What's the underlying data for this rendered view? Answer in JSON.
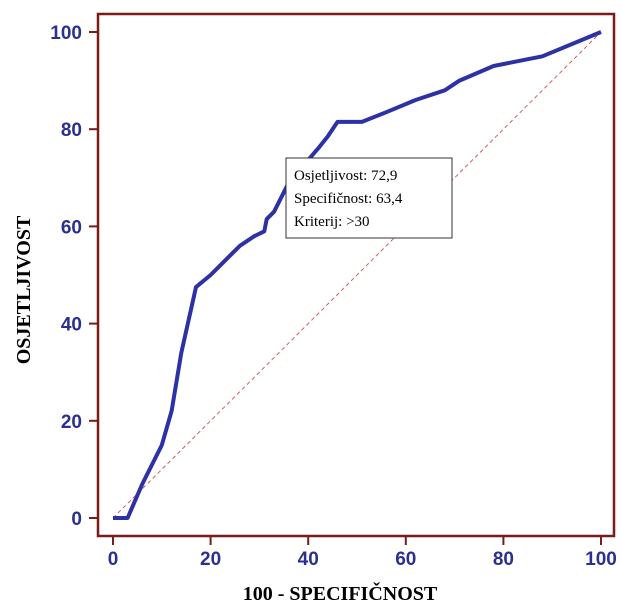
{
  "chart_data": {
    "type": "line",
    "title": "",
    "xlabel": "100 - SPECIFIČNOST",
    "ylabel": "OSJETLJIVOST",
    "xlim": [
      0,
      100
    ],
    "ylim": [
      0,
      100
    ],
    "xticks": [
      0,
      20,
      40,
      60,
      80,
      100
    ],
    "yticks": [
      0,
      20,
      40,
      60,
      80,
      100
    ],
    "grid": false,
    "series": [
      {
        "name": "",
        "color": "#2d31a6",
        "x": [
          0,
          3,
          6,
          10,
          12,
          14,
          17,
          20,
          23,
          26,
          29,
          31,
          31.5,
          33,
          36,
          39,
          42,
          44,
          46,
          51,
          56,
          62,
          68,
          71,
          78,
          88,
          100
        ],
        "y": [
          0,
          0,
          7,
          15,
          22,
          34,
          47.5,
          50,
          53,
          56,
          58,
          59,
          61.5,
          63,
          69,
          72.5,
          76,
          78.5,
          81.5,
          81.5,
          83.5,
          86,
          88,
          90,
          93,
          95,
          100
        ]
      }
    ],
    "reference_line": {
      "x": [
        0,
        100
      ],
      "y": [
        0,
        100
      ],
      "color": "#d06060"
    },
    "annotations": [
      "Osjetljivost: 72,9",
      "Specifičnost: 63,4",
      "Kriterij: >30"
    ],
    "frame_color": "#7a1a1a",
    "tick_label_color": "#2b2f8f"
  }
}
